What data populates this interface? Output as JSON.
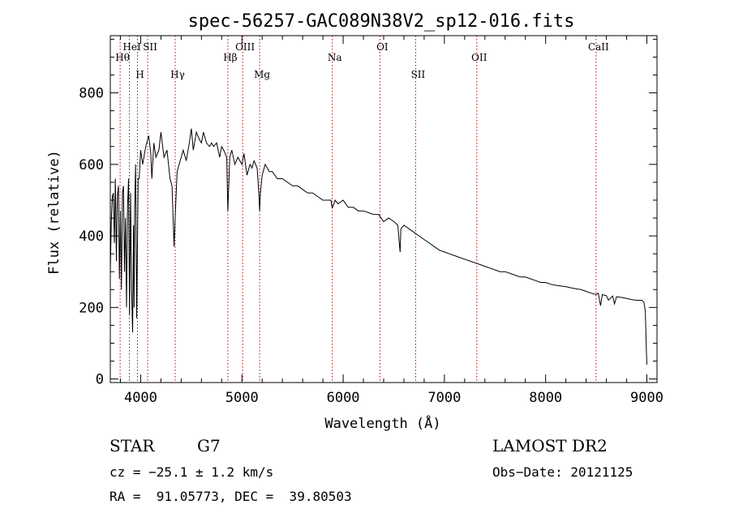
{
  "chart_data": {
    "type": "line",
    "title": "spec-56257-GAC089N38V2_sp12-016.fits",
    "xlabel": "Wavelength (Å)",
    "ylabel": "Flux (relative)",
    "xlim": [
      3700,
      9100
    ],
    "ylim": [
      -10,
      960
    ],
    "x_ticks": [
      4000,
      5000,
      6000,
      7000,
      8000,
      9000
    ],
    "y_ticks": [
      0,
      200,
      400,
      600,
      800
    ],
    "grid": false,
    "series": [
      {
        "color": "#000000",
        "x": [
          3700,
          3710,
          3720,
          3730,
          3740,
          3750,
          3760,
          3770,
          3780,
          3790,
          3800,
          3810,
          3820,
          3830,
          3840,
          3850,
          3860,
          3870,
          3880,
          3890,
          3900,
          3910,
          3920,
          3930,
          3935,
          3940,
          3950,
          3960,
          3968,
          3975,
          3985,
          4000,
          4020,
          4050,
          4080,
          4100,
          4110,
          4130,
          4150,
          4180,
          4200,
          4230,
          4260,
          4290,
          4310,
          4330,
          4340,
          4360,
          4380,
          4400,
          4420,
          4450,
          4480,
          4500,
          4520,
          4550,
          4580,
          4600,
          4620,
          4650,
          4680,
          4700,
          4720,
          4750,
          4780,
          4800,
          4820,
          4850,
          4861,
          4880,
          4900,
          4930,
          4960,
          5000,
          5020,
          5050,
          5080,
          5100,
          5120,
          5150,
          5167,
          5175,
          5183,
          5200,
          5230,
          5270,
          5300,
          5350,
          5400,
          5450,
          5500,
          5550,
          5600,
          5650,
          5700,
          5750,
          5800,
          5850,
          5880,
          5890,
          5896,
          5920,
          5950,
          6000,
          6050,
          6100,
          6150,
          6200,
          6250,
          6300,
          6350,
          6400,
          6450,
          6500,
          6540,
          6555,
          6563,
          6570,
          6600,
          6650,
          6700,
          6750,
          6800,
          6850,
          6900,
          6950,
          7000,
          7050,
          7100,
          7150,
          7200,
          7250,
          7300,
          7350,
          7400,
          7450,
          7500,
          7550,
          7600,
          7650,
          7700,
          7750,
          7800,
          7850,
          7900,
          7950,
          8000,
          8050,
          8100,
          8150,
          8200,
          8250,
          8300,
          8350,
          8400,
          8450,
          8498,
          8520,
          8542,
          8560,
          8600,
          8620,
          8662,
          8680,
          8700,
          8750,
          8800,
          8850,
          8900,
          8950,
          8970,
          8985,
          8995,
          9000
        ],
        "y": [
          300,
          440,
          510,
          520,
          380,
          560,
          330,
          510,
          540,
          280,
          470,
          250,
          520,
          540,
          300,
          450,
          200,
          480,
          560,
          180,
          520,
          250,
          130,
          430,
          200,
          480,
          600,
          170,
          380,
          560,
          560,
          640,
          600,
          650,
          680,
          630,
          560,
          660,
          620,
          640,
          690,
          620,
          640,
          560,
          540,
          370,
          450,
          580,
          600,
          620,
          640,
          610,
          660,
          700,
          640,
          690,
          670,
          660,
          690,
          660,
          650,
          660,
          650,
          660,
          620,
          650,
          640,
          620,
          470,
          620,
          640,
          600,
          620,
          600,
          630,
          570,
          600,
          590,
          610,
          590,
          520,
          470,
          520,
          570,
          600,
          580,
          580,
          560,
          560,
          550,
          540,
          540,
          530,
          520,
          520,
          510,
          500,
          500,
          500,
          480,
          480,
          500,
          490,
          500,
          480,
          480,
          470,
          470,
          465,
          460,
          460,
          440,
          450,
          440,
          430,
          380,
          355,
          420,
          430,
          420,
          410,
          400,
          390,
          380,
          370,
          360,
          355,
          350,
          345,
          340,
          335,
          330,
          325,
          320,
          315,
          310,
          305,
          300,
          300,
          295,
          290,
          285,
          285,
          280,
          275,
          270,
          270,
          265,
          262,
          260,
          258,
          255,
          252,
          250,
          245,
          240,
          236,
          240,
          205,
          236,
          233,
          220,
          232,
          210,
          230,
          228,
          225,
          222,
          220,
          220,
          215,
          190,
          80,
          40
        ]
      }
    ],
    "annotations": [
      {
        "label": "Hθ",
        "x": 3797
      },
      {
        "label": "HeI",
        "x": 3889
      },
      {
        "label": "H",
        "x": 3968
      },
      {
        "label": "SII",
        "x": 4069
      },
      {
        "label": "Hγ",
        "x": 4341
      },
      {
        "label": "Hβ",
        "x": 4861
      },
      {
        "label": "OIII",
        "x": 5007
      },
      {
        "label": "Mg",
        "x": 5175
      },
      {
        "label": "Na",
        "x": 5893
      },
      {
        "label": "OI",
        "x": 6363
      },
      {
        "label": "SII",
        "x": 6716
      },
      {
        "label": "OII",
        "x": 7320
      },
      {
        "label": "CaII",
        "x": 8498
      }
    ]
  },
  "info": {
    "class": "STAR",
    "subclass": "G7",
    "survey": "LAMOST DR2",
    "cz": "cz = −25.1 ± 1.2 km/s",
    "obs_date": "Obs−Date: 20121125",
    "radec": "RA =  91.05773, DEC =  39.80503"
  }
}
